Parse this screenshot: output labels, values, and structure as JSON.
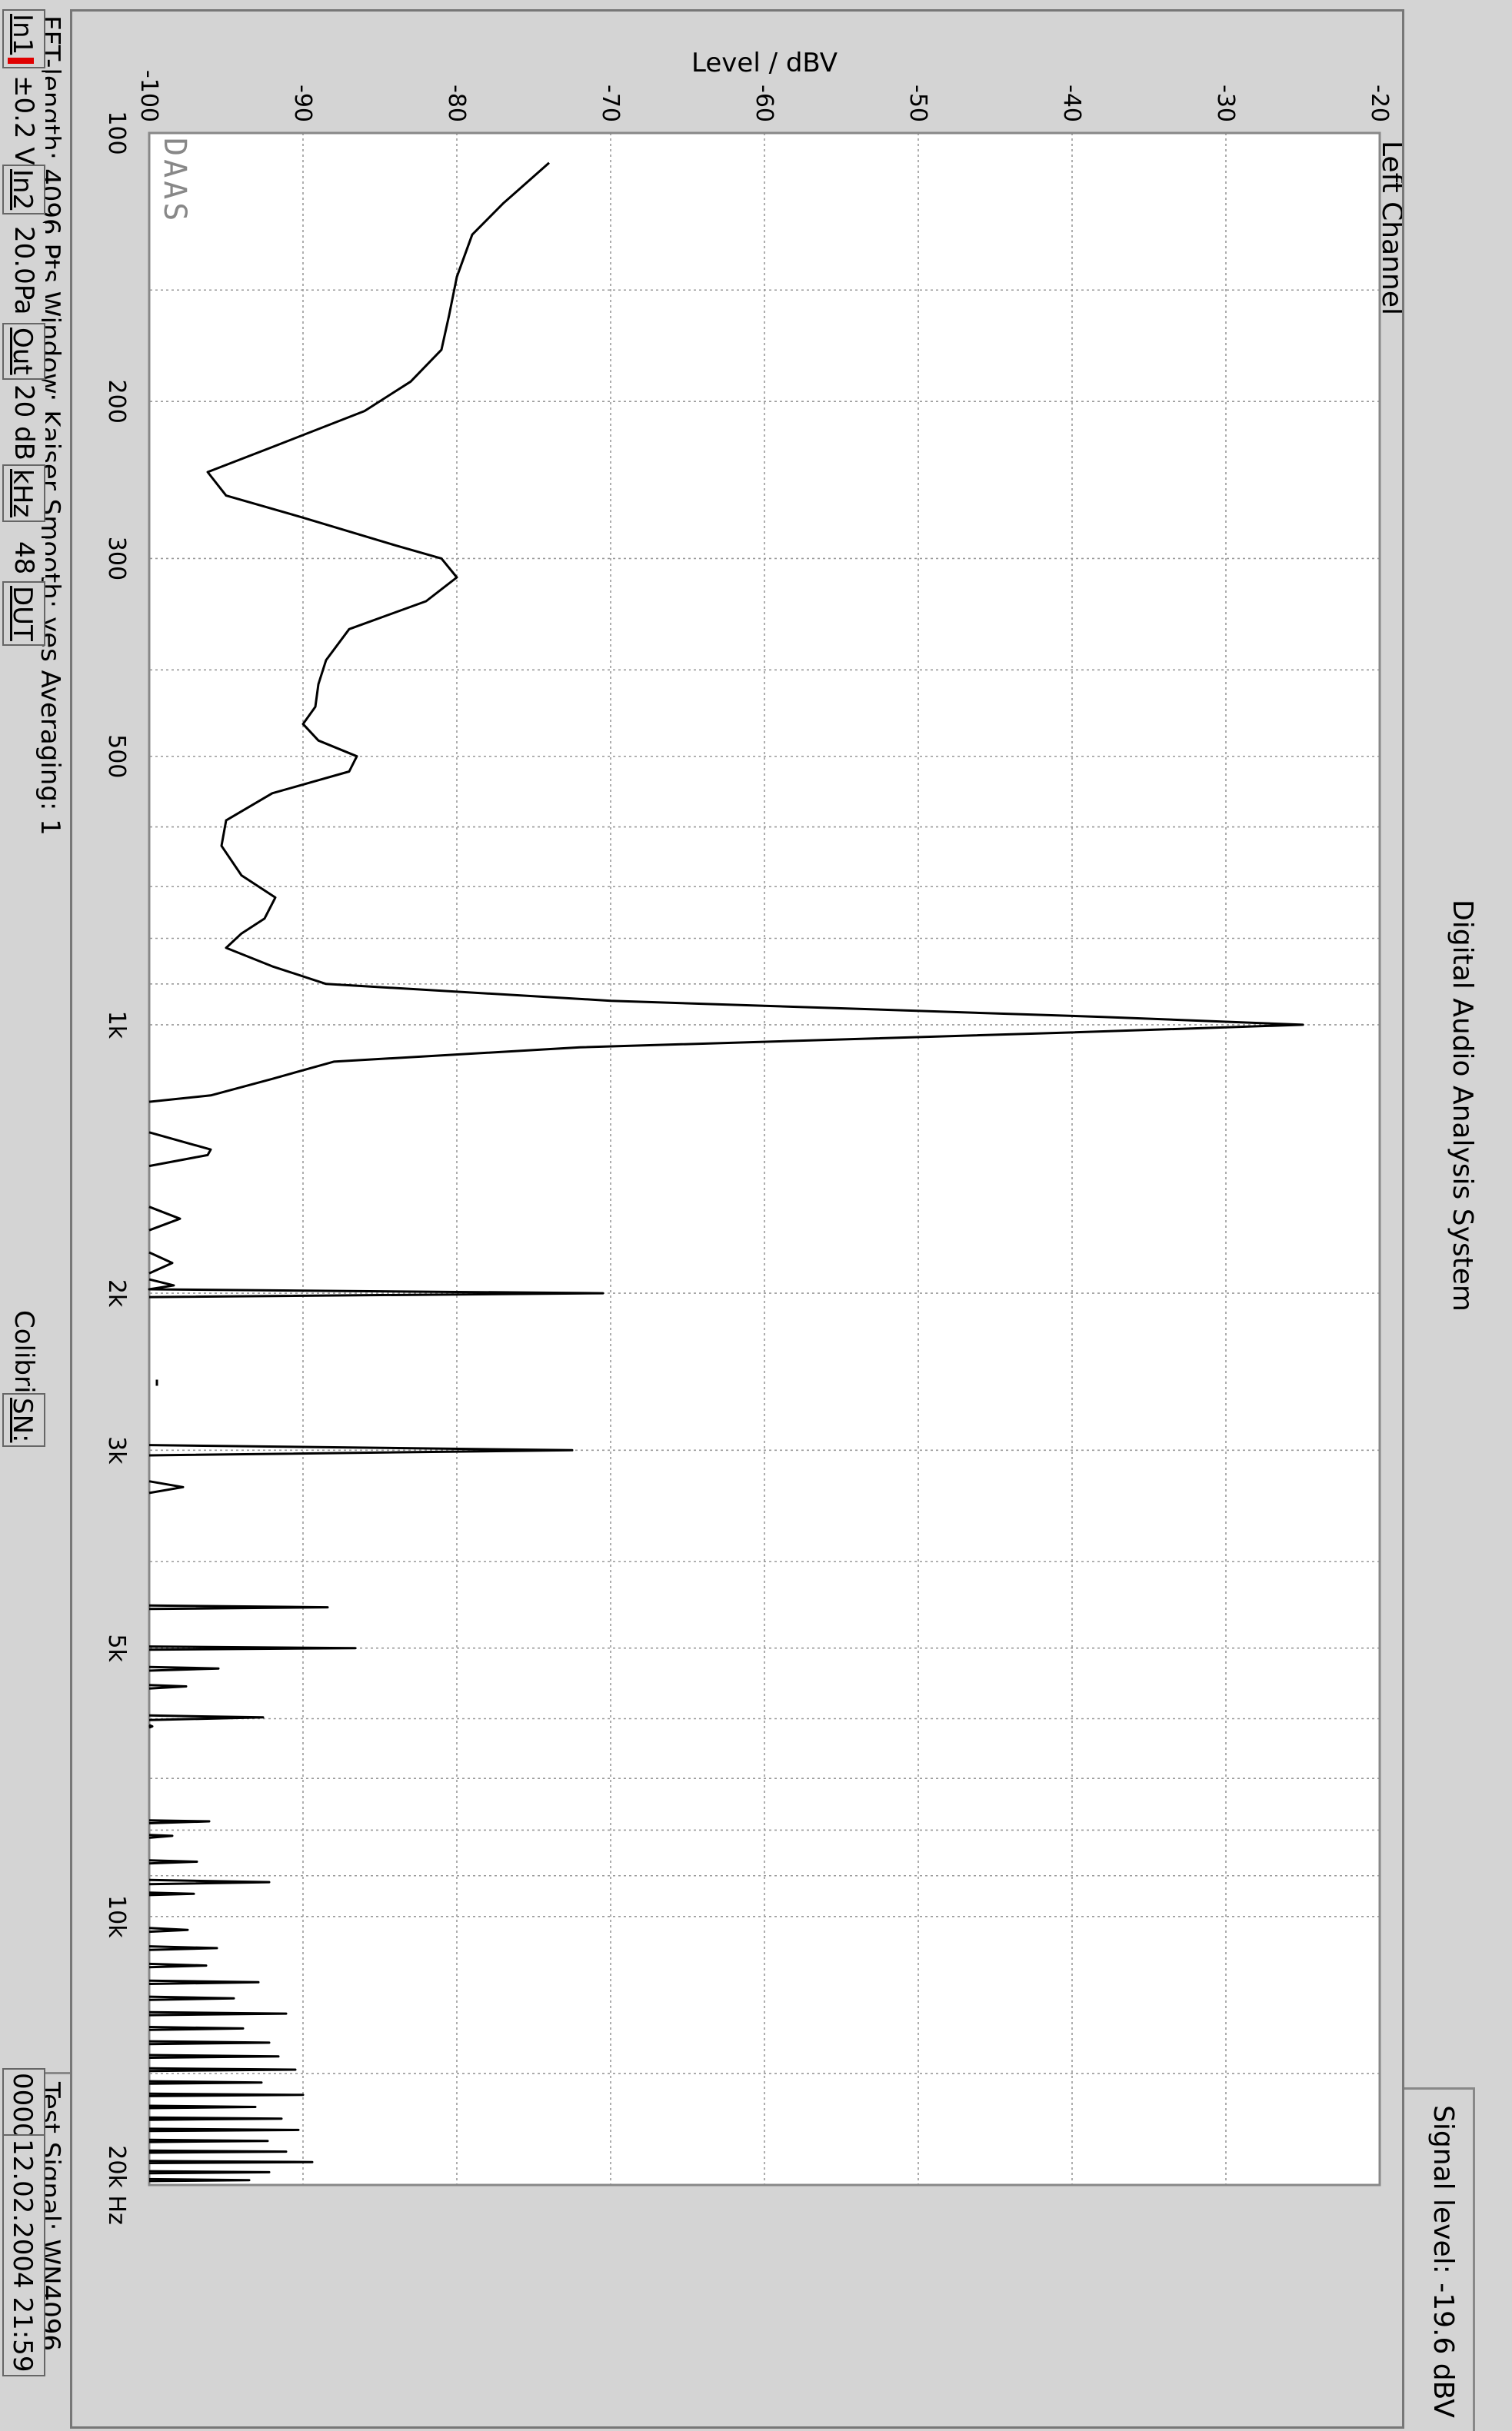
{
  "window": {
    "title": "Digital Audio Analysis System",
    "signal_level": "Signal level: -19.6 dBV"
  },
  "chart_data": {
    "type": "line",
    "title": "Left Channel",
    "ylabel": "Level / dBV",
    "xlabel": "",
    "xscale": "log",
    "xlim": [
      100,
      20000
    ],
    "ylim": [
      -100,
      -20
    ],
    "grid": true,
    "watermark": "DAAS",
    "x_ticks": [
      {
        "value": 100,
        "label": "100"
      },
      {
        "value": 200,
        "label": "200"
      },
      {
        "value": 300,
        "label": "300"
      },
      {
        "value": 500,
        "label": "500"
      },
      {
        "value": 1000,
        "label": "1k"
      },
      {
        "value": 2000,
        "label": "2k"
      },
      {
        "value": 3000,
        "label": "3k"
      },
      {
        "value": 5000,
        "label": "5k"
      },
      {
        "value": 10000,
        "label": "10k"
      },
      {
        "value": 20000,
        "label": "20k Hz"
      }
    ],
    "x_minor_grid": [
      150,
      400,
      600,
      700,
      800,
      900,
      4000,
      6000,
      7000,
      8000,
      9000,
      15000
    ],
    "y_ticks": [
      {
        "value": -100,
        "label": "-100"
      },
      {
        "value": -90,
        "label": "-90"
      },
      {
        "value": -80,
        "label": "-80"
      },
      {
        "value": -70,
        "label": "-70"
      },
      {
        "value": -60,
        "label": "-60"
      },
      {
        "value": -50,
        "label": "-50"
      },
      {
        "value": -40,
        "label": "-40"
      },
      {
        "value": -30,
        "label": "-30"
      },
      {
        "value": -20,
        "label": "-20"
      }
    ],
    "series": [
      {
        "color": "#000000",
        "segments": [
          [
            [
              108,
              -74
            ],
            [
              120,
              -77
            ],
            [
              130,
              -79
            ],
            [
              145,
              -80
            ],
            [
              160,
              -80.5
            ],
            [
              175,
              -81
            ],
            [
              190,
              -83
            ],
            [
              205,
              -86
            ],
            [
              225,
              -92
            ],
            [
              240,
              -96.2
            ],
            [
              255,
              -95
            ],
            [
              270,
              -90
            ],
            [
              290,
              -84
            ],
            [
              300,
              -81
            ],
            [
              315,
              -80
            ],
            [
              335,
              -82
            ],
            [
              360,
              -87
            ],
            [
              390,
              -88.5
            ],
            [
              415,
              -89
            ],
            [
              440,
              -89.2
            ],
            [
              460,
              -90
            ],
            [
              480,
              -89
            ],
            [
              500,
              -86.5
            ],
            [
              520,
              -87
            ],
            [
              550,
              -92
            ],
            [
              590,
              -95
            ],
            [
              630,
              -95.3
            ],
            [
              680,
              -94
            ],
            [
              720,
              -91.8
            ],
            [
              760,
              -92.5
            ],
            [
              790,
              -94
            ],
            [
              820,
              -95
            ],
            [
              860,
              -92
            ],
            [
              900,
              -88.5
            ],
            [
              940,
              -70
            ],
            [
              980,
              -38
            ],
            [
              1000,
              -25
            ],
            [
              1020,
              -40
            ],
            [
              1060,
              -72
            ],
            [
              1100,
              -88
            ],
            [
              1150,
              -92
            ],
            [
              1200,
              -96
            ],
            [
              1220,
              -100
            ]
          ],
          [
            [
              1320,
              -100
            ],
            [
              1380,
              -96
            ],
            [
              1400,
              -96.2
            ],
            [
              1440,
              -100
            ]
          ],
          [
            [
              1600,
              -100
            ],
            [
              1650,
              -98
            ],
            [
              1700,
              -100
            ]
          ],
          [
            [
              1800,
              -100
            ],
            [
              1850,
              -98.5
            ],
            [
              1900,
              -100
            ]
          ],
          [
            [
              1930,
              -100
            ],
            [
              1960,
              -98.4
            ],
            [
              1980,
              -100
            ],
            [
              2000,
              -70.5
            ],
            [
              2020,
              -100
            ]
          ],
          [
            [
              2500,
              -99.5
            ],
            [
              2540,
              -99.5
            ]
          ],
          [
            [
              2960,
              -100
            ],
            [
              3000,
              -72.5
            ],
            [
              3040,
              -100
            ]
          ],
          [
            [
              3250,
              -100
            ],
            [
              3300,
              -97.8
            ],
            [
              3350,
              -100
            ]
          ],
          [
            [
              4480,
              -100
            ],
            [
              4500,
              -88.4
            ],
            [
              4520,
              -100
            ]
          ],
          [
            [
              4980,
              -100
            ],
            [
              5000,
              -86.6
            ],
            [
              5020,
              -100
            ]
          ],
          [
            [
              5250,
              -100
            ],
            [
              5270,
              -95.5
            ],
            [
              5300,
              -100
            ]
          ],
          [
            [
              5500,
              -100
            ],
            [
              5520,
              -97.6
            ],
            [
              5550,
              -100
            ]
          ],
          [
            [
              5950,
              -100
            ],
            [
              5980,
              -92.6
            ],
            [
              6020,
              -100
            ]
          ],
          [
            [
              6100,
              -100
            ],
            [
              6120,
              -99.8
            ],
            [
              6140,
              -100
            ]
          ],
          [
            [
              7800,
              -100
            ],
            [
              7820,
              -96.1
            ],
            [
              7860,
              -100
            ]
          ],
          [
            [
              8100,
              -100
            ],
            [
              8120,
              -98.5
            ],
            [
              8160,
              -100
            ]
          ],
          [
            [
              8650,
              -100
            ],
            [
              8680,
              -96.9
            ],
            [
              8720,
              -100
            ]
          ],
          [
            [
              9100,
              -100
            ],
            [
              9150,
              -92.2
            ],
            [
              9200,
              -100
            ]
          ],
          [
            [
              9400,
              -100
            ],
            [
              9430,
              -97.1
            ],
            [
              9460,
              -100
            ]
          ],
          [
            [
              10300,
              -100
            ],
            [
              10350,
              -97.5
            ],
            [
              10400,
              -100
            ]
          ],
          [
            [
              10800,
              -100
            ],
            [
              10850,
              -95.6
            ],
            [
              10900,
              -100
            ]
          ],
          [
            [
              11300,
              -100
            ],
            [
              11350,
              -96.3
            ],
            [
              11400,
              -100
            ]
          ],
          [
            [
              11800,
              -100
            ],
            [
              11850,
              -92.9
            ],
            [
              11900,
              -100
            ]
          ],
          [
            [
              12300,
              -100
            ],
            [
              12350,
              -94.5
            ],
            [
              12400,
              -100
            ]
          ],
          [
            [
              12800,
              -100
            ],
            [
              12850,
              -91.1
            ],
            [
              12900,
              -100
            ]
          ],
          [
            [
              13300,
              -100
            ],
            [
              13350,
              -93.9
            ],
            [
              13400,
              -100
            ]
          ],
          [
            [
              13800,
              -100
            ],
            [
              13850,
              -92.2
            ],
            [
              13900,
              -100
            ]
          ],
          [
            [
              14300,
              -100
            ],
            [
              14350,
              -91.6
            ],
            [
              14400,
              -100
            ]
          ],
          [
            [
              14800,
              -100
            ],
            [
              14850,
              -90.5
            ],
            [
              14900,
              -100
            ]
          ],
          [
            [
              15300,
              -100
            ],
            [
              15350,
              -92.7
            ],
            [
              15400,
              -100
            ]
          ],
          [
            [
              15800,
              -100
            ],
            [
              15850,
              -90
            ],
            [
              15900,
              -100
            ]
          ],
          [
            [
              16300,
              -100
            ],
            [
              16350,
              -93.1
            ],
            [
              16400,
              -100
            ]
          ],
          [
            [
              16800,
              -100
            ],
            [
              16850,
              -91.4
            ],
            [
              16900,
              -100
            ]
          ],
          [
            [
              17300,
              -100
            ],
            [
              17350,
              -90.3
            ],
            [
              17400,
              -100
            ]
          ],
          [
            [
              17800,
              -100
            ],
            [
              17850,
              -92.3
            ],
            [
              17900,
              -100
            ]
          ],
          [
            [
              18300,
              -100
            ],
            [
              18350,
              -91.1
            ],
            [
              18400,
              -100
            ]
          ],
          [
            [
              18800,
              -100
            ],
            [
              18850,
              -89.4
            ],
            [
              18900,
              -100
            ]
          ],
          [
            [
              19300,
              -100
            ],
            [
              19350,
              -92.2
            ],
            [
              19400,
              -100
            ]
          ],
          [
            [
              19700,
              -100
            ],
            [
              19750,
              -93.5
            ],
            [
              19800,
              -100
            ]
          ]
        ]
      }
    ]
  },
  "info": {
    "fft_settings": "FFT-length: 4096 Pts    Window: Kaiser  Smooth: yes  Averaging:  1",
    "test_signal": "Test Signal: WN4096"
  },
  "toolbar": {
    "in1": "In1",
    "in1_range": "±0.2 V",
    "in2": "In2",
    "in2_range": "20.0Pa",
    "out": "Out",
    "out_level": "20 dB",
    "khz": "kHz",
    "rate": "48",
    "dut": "DUT",
    "device": "Colibri",
    "sn": "SN:",
    "counter": "0000",
    "datetime": "12.02.2004  21:59"
  }
}
